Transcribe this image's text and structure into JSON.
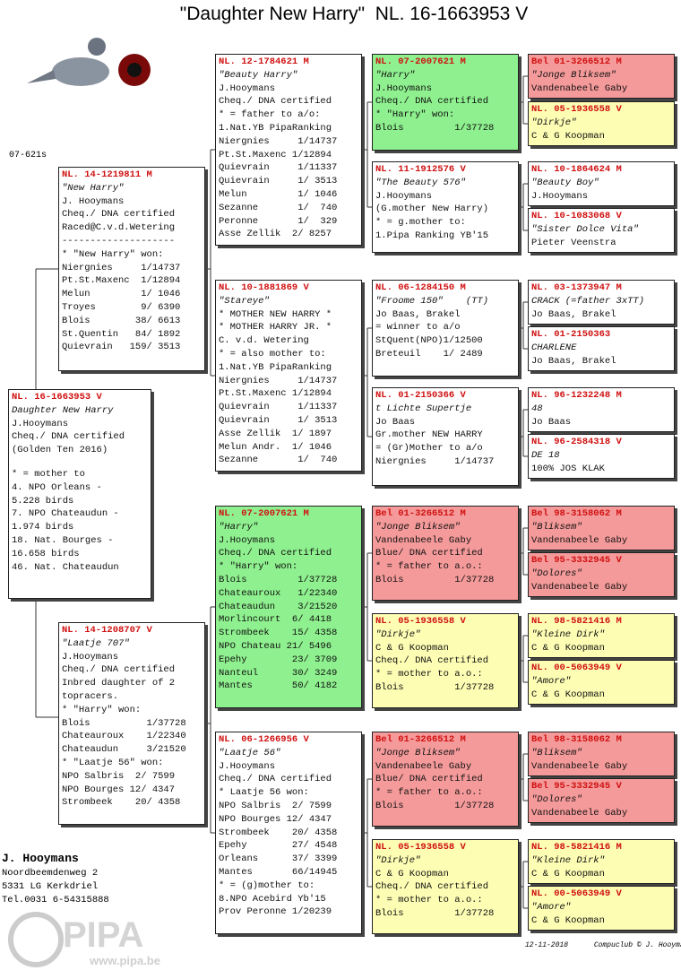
{
  "header": {
    "title": "\"Daughter New Harry\"  NL. 16-1663953 V",
    "code": "07-621s"
  },
  "pedigree": [
    {
      "ring": "NL. 16-1663953 V",
      "lines": [
        "Daughter New Harry",
        "J.Hooymans",
        "Cheq./ DNA certified",
        "(Golden Ten 2016)",
        "* = mother to",
        "4. NPO Orleans -",
        "5.228 birds",
        "7. NPO Chateaudun -",
        "1.974 birds",
        "18. Nat. Bourges -",
        "16.658 birds",
        "46. Nat. Chateaudun"
      ]
    },
    {
      "ring": "NL. 14-1219811 M",
      "lines": [
        "\"New Harry\"",
        "J. Hooymans",
        "Cheq./ DNA certified",
        "Raced@C.v.d.Wetering",
        "--------------------",
        "* \"New Harry\" won:",
        "Niergnies     1/14737",
        "Pt.St.Maxenc  1/12894",
        "Melun         1/ 1046",
        "Troyes        9/ 6390",
        "Blois        38/ 6613",
        "St.Quentin   84/ 1892",
        "Quievrain   159/ 3513"
      ]
    },
    {
      "ring": "NL. 14-1208707 V",
      "lines": [
        "\"Laatje 707\"",
        "J.Hooymans",
        "Cheq./ DNA certified",
        "Inbred daughter of 2",
        "topracers.",
        "* \"Harry\" won:",
        "Blois          1/37728",
        "Chateauroux    1/22340",
        "Chateaudun     3/21520",
        "* \"Laatje 56\" won:",
        "NPO Salbris  2/ 7599",
        "NPO Bourges 12/ 4347",
        "Strombeek    20/ 4358"
      ]
    },
    {
      "ring": "NL. 12-1784621 M",
      "lines": [
        "\"Beauty Harry\"",
        "J.Hooymans",
        "Cheq./ DNA certified",
        "* = father to a/o:",
        "1.Nat.YB PipaRanking",
        "Niergnies     1/14737",
        "Pt.St.Maxenc 1/12894",
        "Quievrain     1/11337",
        "Quievrain     1/ 3513",
        "Melun         1/ 1046",
        "Sezanne       1/  740",
        "Peronne       1/  329",
        "Asse Zellik  2/ 8257"
      ]
    },
    {
      "ring": "NL. 10-1881869 V",
      "lines": [
        "\"Stareye\"",
        "* MOTHER NEW HARRY *",
        "* MOTHER HARRY JR. *",
        "C. v.d. Wetering",
        "* = also mother to:",
        "1.Nat.YB PipaRanking",
        "Niergnies     1/14737",
        "Pt.St.Maxenc 1/12894",
        "Quievrain     1/11337",
        "Quievrain     1/ 3513",
        "Asse Zellik  1/ 1897",
        "Melun Andr.  1/ 1046",
        "Sezanne       1/  740"
      ]
    },
    {
      "ring": "NL. 07-2007621 M",
      "lines": [
        "\"Harry\"",
        "J.Hooymans",
        "Cheq./ DNA certified",
        "* \"Harry\" won:",
        "Blois         1/37728",
        "Chateauroux   1/22340",
        "Chateaudun    3/21520",
        "Morlincourt  6/ 4418",
        "Strombeek    15/ 4358",
        "NPO Chateau 21/ 5496",
        "Epehy        23/ 3709",
        "Nanteul      30/ 3249",
        "Mantes       50/ 4182"
      ]
    },
    {
      "ring": "NL. 06-1266956 V",
      "lines": [
        "\"Laatje 56\"",
        "J.Hooymans",
        "Cheq./ DNA certified",
        "* Laatje 56 won:",
        "NPO Salbris  2/ 7599",
        "NPO Bourges 12/ 4347",
        "Strombeek    20/ 4358",
        "Epehy        27/ 4548",
        "Orleans      37/ 3399",
        "Mantes       66/14945",
        "* = (g)mother to:",
        "8.NPO Acebird Yb'15",
        "Prov Peronne 1/20239"
      ]
    },
    {
      "ring": "NL. 07-2007621 M",
      "lines": [
        "\"Harry\"",
        "J.Hooymans",
        "Cheq./ DNA certified",
        "* \"Harry\" won:",
        "Blois         1/37728"
      ]
    },
    {
      "ring": "NL. 11-1912576 V",
      "lines": [
        "\"The Beauty 576\"",
        "J.Hooymans",
        "(G.mother New Harry)",
        "* = g.mother to:",
        "1.Pipa Ranking YB'15"
      ]
    },
    {
      "ring": "NL. 06-1284150 M",
      "lines": [
        "\"Froome 150\"    (TT)",
        "Jo Baas, Brakel",
        "= winner to a/o",
        "StQuent(NPO)1/12500",
        "Breteuil    1/ 2489"
      ]
    },
    {
      "ring": "NL. 01-2150366 V",
      "lines": [
        "t Lichte Supertje",
        "Jo Baas",
        "Gr.mother NEW HARRY",
        "= (Gr)Mother to a/o",
        "Niergnies     1/14737"
      ]
    },
    {
      "ring": "Bel 01-3266512 M",
      "lines": [
        "\"Jonge Bliksem\"",
        "Vandenabeele Gaby",
        "Blue/ DNA certified",
        "* = father to a.o.:",
        "Blois         1/37728"
      ]
    },
    {
      "ring": "NL. 05-1936558 V",
      "lines": [
        "\"Dirkje\"",
        "C & G Koopman",
        "Cheq./ DNA certified",
        "* = mother to a.o.:",
        "Blois         1/37728"
      ]
    },
    {
      "ring": "Bel 01-3266512 M",
      "lines": [
        "\"Jonge Bliksem\"",
        "Vandenabeele Gaby",
        "Blue/ DNA certified",
        "* = father to a.o.:",
        "Blois         1/37728"
      ]
    },
    {
      "ring": "NL. 05-1936558 V",
      "lines": [
        "\"Dirkje\"",
        "C & G Koopman",
        "Cheq./ DNA certified",
        "* = mother to a.o.:",
        "Blois         1/37728"
      ]
    },
    {
      "ring": "Bel 01-3266512 M",
      "lines": [
        "\"Jonge Bliksem\"",
        "Vandenabeele Gaby"
      ]
    },
    {
      "ring": "NL. 05-1936558 V",
      "lines": [
        "\"Dirkje\"",
        "C & G Koopman"
      ]
    },
    {
      "ring": "NL. 10-1864624 M",
      "lines": [
        "\"Beauty Boy\"",
        "J.Hooymans"
      ]
    },
    {
      "ring": "NL. 10-1083068 V",
      "lines": [
        "\"Sister Dolce Vita\"",
        "Pieter Veenstra"
      ]
    },
    {
      "ring": "NL. 03-1373947 M",
      "lines": [
        "CRACK (=father 3xTT)",
        "Jo Baas, Brakel"
      ]
    },
    {
      "ring": "NL. 01-2150363",
      "lines": [
        "CHARLENE",
        "Jo Baas, Brakel"
      ]
    },
    {
      "ring": "NL. 96-1232248 M",
      "lines": [
        "48",
        "Jo Baas"
      ]
    },
    {
      "ring": "NL. 96-2584318 V",
      "lines": [
        "DE 18",
        "100% JOS KLAK"
      ]
    },
    {
      "ring": "Bel 98-3158062 M",
      "lines": [
        "\"Bliksem\"",
        "Vandenabeele Gaby"
      ]
    },
    {
      "ring": "Bel 95-3332945 V",
      "lines": [
        "\"Dolores\"",
        "Vandenabeele Gaby"
      ]
    },
    {
      "ring": "NL. 98-5821416 M",
      "lines": [
        "\"Kleine Dirk\"",
        "C & G Koopman"
      ]
    },
    {
      "ring": "NL. 00-5063949 V",
      "lines": [
        "\"Amore\"",
        "C & G Koopman"
      ]
    },
    {
      "ring": "Bel 98-3158062 M",
      "lines": [
        "\"Bliksem\"",
        "Vandenabeele Gaby"
      ]
    },
    {
      "ring": "Bel 95-3332945 V",
      "lines": [
        "\"Dolores\"",
        "Vandenabeele Gaby"
      ]
    },
    {
      "ring": "NL. 98-5821416 M",
      "lines": [
        "\"Kleine Dirk\"",
        "C & G Koopman"
      ]
    },
    {
      "ring": "NL. 00-5063949 V",
      "lines": [
        "\"Amore\"",
        "C & G Koopman"
      ]
    }
  ],
  "owner": {
    "name": "J. Hooymans",
    "address": [
      "Noordbeemdenweg 2",
      "5331 LG  Kerkdriel",
      "Tel.0031 6-54315888"
    ]
  },
  "footer": {
    "date": "12-11-2018",
    "credit": "Compuclub © J. Hooymans"
  },
  "logo": {
    "brand": "PIPA",
    "url": "www.pipa.be"
  }
}
